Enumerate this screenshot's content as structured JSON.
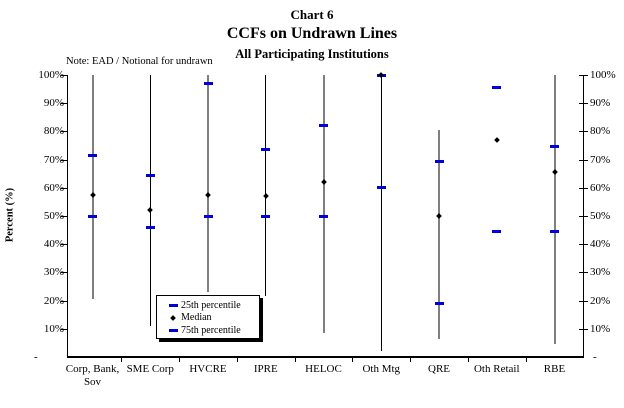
{
  "title": {
    "line1": "Chart 6",
    "line2": "CCFs on Undrawn Lines",
    "line3": "All Participating Institutions"
  },
  "note": "Note: EAD / Notional for undrawn",
  "y_axis": {
    "label": "Percent (%)",
    "ticks": [
      {
        "label": "100%",
        "value": 100
      },
      {
        "label": "90%",
        "value": 90
      },
      {
        "label": "80%",
        "value": 80
      },
      {
        "label": "70%",
        "value": 70
      },
      {
        "label": "60%",
        "value": 60
      },
      {
        "label": "50%",
        "value": 50
      },
      {
        "label": "40%",
        "value": 40
      },
      {
        "label": "30%",
        "value": 30
      },
      {
        "label": "20%",
        "value": 20
      },
      {
        "label": "10%",
        "value": 10
      },
      {
        "label": "-",
        "value": 0
      }
    ]
  },
  "legend": {
    "items": [
      {
        "marker": "dash",
        "label": "25th percentile"
      },
      {
        "marker": "diamond",
        "label": "Median"
      },
      {
        "marker": "dash",
        "label": "75th percentile"
      }
    ]
  },
  "colors": {
    "percentile_marker": "#0000DD",
    "median_marker": "#000000",
    "range_line_gray": "#7F7F7F",
    "range_line_dark": "#000000",
    "axis": "#000000"
  },
  "chart_data": {
    "type": "percentile-range",
    "title": "Chart 6 / CCFs on Undrawn Lines / All Participating Institutions",
    "ylabel": "Percent (%)",
    "ylim": [
      0,
      100
    ],
    "y_tick_interval": 10,
    "grid": false,
    "legend_position": "bottom-center-inside",
    "categories": [
      "Corp, Bank, Sov",
      "SME Corp",
      "HVCRE",
      "IPRE",
      "HELOC",
      "Oth Mtg",
      "QRE",
      "Oth Retail",
      "RBE"
    ],
    "series": [
      {
        "name": "25th percentile",
        "marker": "dash",
        "values": [
          50,
          46,
          50,
          50,
          50,
          60,
          19,
          44.5,
          44.5
        ]
      },
      {
        "name": "Median",
        "marker": "diamond",
        "values": [
          57.5,
          52,
          57.5,
          57,
          62,
          100,
          50,
          77,
          65.5
        ]
      },
      {
        "name": "75th percentile",
        "marker": "dash",
        "values": [
          71.5,
          64.5,
          97,
          73.5,
          82,
          100,
          69.5,
          95.5,
          74.5
        ]
      }
    ],
    "range_lines": {
      "description": "vertical min-max whisker line per category",
      "min": [
        20.5,
        11,
        23,
        21.5,
        8.5,
        2,
        6.5,
        null,
        4.5
      ],
      "max": [
        100,
        100,
        100,
        100,
        100,
        100,
        80.5,
        null,
        100
      ],
      "styles": [
        "gray",
        "dark",
        "gray",
        "dark",
        "gray",
        "dark",
        "gray",
        "none",
        "gray"
      ]
    }
  }
}
